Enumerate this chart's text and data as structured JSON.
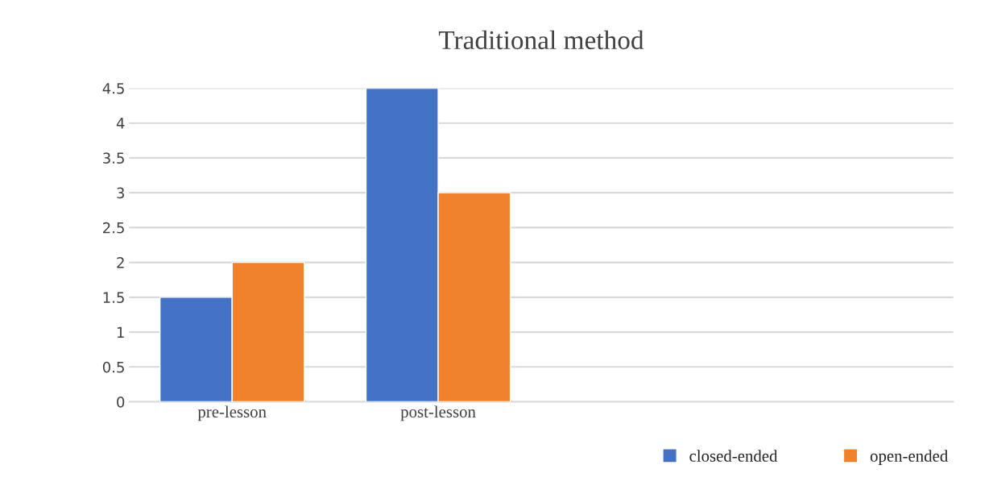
{
  "chart_data": {
    "type": "bar",
    "title": "Traditional method",
    "categories": [
      "pre-lesson",
      "post-lesson",
      null,
      null
    ],
    "series": [
      {
        "name": "closed-ended",
        "color": "#4472c4",
        "values": [
          1.5,
          4.5,
          null,
          null
        ]
      },
      {
        "name": "open-ended",
        "color": "#f0822d",
        "values": [
          2,
          3,
          null,
          null
        ]
      }
    ],
    "ylim": [
      0,
      4.5
    ],
    "yticks": [
      0,
      0.5,
      1,
      1.5,
      2,
      2.5,
      3,
      3.5,
      4,
      4.5
    ],
    "grid": "y",
    "legend": "bottom right"
  }
}
